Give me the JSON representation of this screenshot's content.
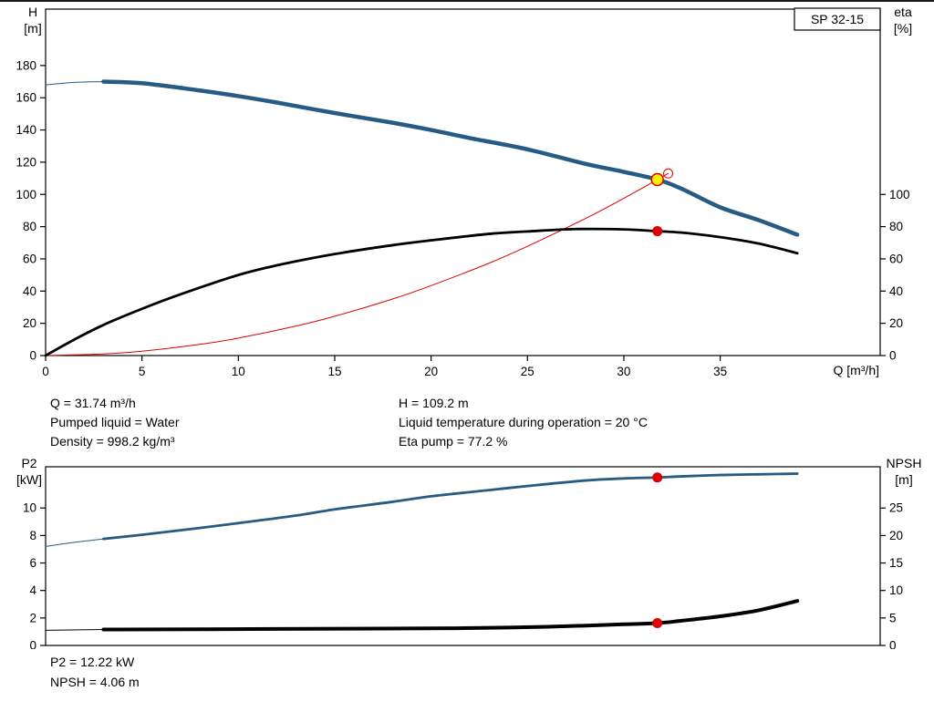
{
  "page": {
    "top_info": {
      "col1": [
        "Q = 31.74 m³/h",
        "Pumped liquid = Water",
        "Density = 998.2 kg/m³"
      ],
      "col2": [
        "H = 109.2 m",
        "Liquid temperature during operation = 20 °C",
        "Eta pump = 77.2 %"
      ]
    },
    "bottom_info": [
      "P2 = 12.22 kW",
      "NPSH = 4.06 m"
    ]
  },
  "chart_data": [
    {
      "type": "line",
      "title": "SP 32-15",
      "x_axis": {
        "label": "Q [m³/h]",
        "min": 0,
        "max": 43.3,
        "ticks": [
          0,
          5,
          10,
          15,
          20,
          25,
          30,
          35
        ]
      },
      "y_left": {
        "label": "H",
        "unit": "[m]",
        "min": 0,
        "max": 215,
        "ticks": [
          0,
          20,
          40,
          60,
          80,
          100,
          120,
          140,
          160,
          180
        ]
      },
      "y_right": {
        "label": "eta",
        "unit": "[%]",
        "min": 0,
        "max": 215,
        "ticks": [
          0,
          20,
          40,
          60,
          80,
          100
        ]
      },
      "series": [
        {
          "name": "system-curve",
          "axis": "left",
          "color": "#dd0000",
          "width": 1,
          "points": [
            [
              0,
              0
            ],
            [
              3,
              0.98
            ],
            [
              5,
              2.7
            ],
            [
              8,
              6.9
            ],
            [
              10,
              10.8
            ],
            [
              13,
              18.3
            ],
            [
              15,
              24.4
            ],
            [
              18,
              35.1
            ],
            [
              20,
              43.4
            ],
            [
              23,
              57.3
            ],
            [
              25,
              67.8
            ],
            [
              28,
              85.0
            ],
            [
              30,
              97.6
            ],
            [
              31.74,
              109.2
            ],
            [
              32.3,
              113.0
            ]
          ]
        },
        {
          "name": "head-curve-lead",
          "axis": "left",
          "color": "#275b84",
          "width": 1,
          "points": [
            [
              0,
              168
            ],
            [
              1.5,
              169.5
            ],
            [
              3,
              170
            ]
          ]
        },
        {
          "name": "head-curve",
          "axis": "left",
          "color": "#275b84",
          "width": 4.5,
          "points": [
            [
              3,
              170
            ],
            [
              5,
              169
            ],
            [
              8,
              164.5
            ],
            [
              10,
              161
            ],
            [
              12,
              157
            ],
            [
              15,
              150.5
            ],
            [
              18,
              144.5
            ],
            [
              20,
              140
            ],
            [
              22,
              135
            ],
            [
              25,
              128
            ],
            [
              28,
              119
            ],
            [
              30,
              114
            ],
            [
              31.74,
              109.2
            ],
            [
              33,
              103.5
            ],
            [
              35,
              92
            ],
            [
              37,
              84
            ],
            [
              39,
              75
            ]
          ]
        },
        {
          "name": "eta-curve",
          "axis": "right",
          "color": "#000000",
          "width": 2.8,
          "points": [
            [
              0,
              0
            ],
            [
              1.5,
              10
            ],
            [
              3,
              19
            ],
            [
              5,
              29
            ],
            [
              7,
              38
            ],
            [
              10,
              50
            ],
            [
              12,
              56
            ],
            [
              15,
              63
            ],
            [
              18,
              68.5
            ],
            [
              20,
              71.5
            ],
            [
              23,
              75.5
            ],
            [
              25,
              77
            ],
            [
              27.5,
              78.5
            ],
            [
              30,
              78.3
            ],
            [
              31.74,
              77.2
            ],
            [
              33,
              76.3
            ],
            [
              35,
              73.5
            ],
            [
              37,
              69.5
            ],
            [
              39,
              63.5
            ]
          ]
        }
      ],
      "markers": [
        {
          "name": "system-end-ring",
          "axis": "left",
          "x": 32.3,
          "y": 113.0,
          "r": 5,
          "fill": "none",
          "stroke": "#dd0000",
          "stroke_width": 1,
          "interactable": false
        },
        {
          "name": "duty-point",
          "axis": "left",
          "x": 31.74,
          "y": 109.2,
          "r": 6.5,
          "fill": "#ffee00",
          "stroke": "#dd0000",
          "stroke_width": 1.5,
          "interactable": true
        },
        {
          "name": "eta-point",
          "axis": "right",
          "x": 31.74,
          "y": 77.2,
          "r": 5.5,
          "fill": "#dd0000",
          "stroke": "none",
          "stroke_width": 0,
          "interactable": false
        }
      ]
    },
    {
      "type": "line",
      "title": "",
      "x_axis": {
        "label": "",
        "min": 0,
        "max": 43.3,
        "ticks": []
      },
      "y_left": {
        "label": "P2",
        "unit": "[kW]",
        "min": 0,
        "max": 13,
        "ticks": [
          0,
          2,
          4,
          6,
          8,
          10
        ]
      },
      "y_right": {
        "label": "NPSH",
        "unit": "[m]",
        "min": 0,
        "max": 32.5,
        "ticks": [
          0,
          5,
          10,
          15,
          20,
          25
        ]
      },
      "series": [
        {
          "name": "p2-curve-lead",
          "axis": "left",
          "color": "#275b84",
          "width": 1,
          "points": [
            [
              0,
              7.2
            ],
            [
              1.5,
              7.5
            ],
            [
              3,
              7.75
            ]
          ]
        },
        {
          "name": "p2-curve",
          "axis": "left",
          "color": "#275b84",
          "width": 2.8,
          "points": [
            [
              3,
              7.75
            ],
            [
              5,
              8.05
            ],
            [
              8,
              8.55
            ],
            [
              10,
              8.9
            ],
            [
              13,
              9.45
            ],
            [
              15,
              9.9
            ],
            [
              18,
              10.45
            ],
            [
              20,
              10.85
            ],
            [
              23,
              11.3
            ],
            [
              25,
              11.6
            ],
            [
              28,
              12.0
            ],
            [
              30,
              12.15
            ],
            [
              31.74,
              12.22
            ],
            [
              33,
              12.3
            ],
            [
              35,
              12.4
            ],
            [
              37,
              12.45
            ],
            [
              39,
              12.5
            ]
          ]
        },
        {
          "name": "npsh-curve-lead",
          "axis": "right",
          "color": "#000000",
          "width": 1,
          "points": [
            [
              0,
              2.75
            ],
            [
              3,
              2.9
            ]
          ]
        },
        {
          "name": "npsh-curve",
          "axis": "right",
          "color": "#000000",
          "width": 4,
          "points": [
            [
              3,
              2.9
            ],
            [
              8,
              2.95
            ],
            [
              12,
              3.0
            ],
            [
              16,
              3.05
            ],
            [
              20,
              3.1
            ],
            [
              24,
              3.25
            ],
            [
              27,
              3.5
            ],
            [
              30,
              3.85
            ],
            [
              31.74,
              4.06
            ],
            [
              33,
              4.5
            ],
            [
              35,
              5.3
            ],
            [
              37,
              6.4
            ],
            [
              39,
              8.1
            ]
          ]
        }
      ],
      "markers": [
        {
          "name": "p2-point",
          "axis": "left",
          "x": 31.74,
          "y": 12.22,
          "r": 5.5,
          "fill": "#dd0000",
          "stroke": "none",
          "stroke_width": 0,
          "interactable": false
        },
        {
          "name": "npsh-point",
          "axis": "right",
          "x": 31.74,
          "y": 4.06,
          "r": 5.5,
          "fill": "#dd0000",
          "stroke": "none",
          "stroke_width": 0,
          "interactable": false
        }
      ]
    }
  ]
}
